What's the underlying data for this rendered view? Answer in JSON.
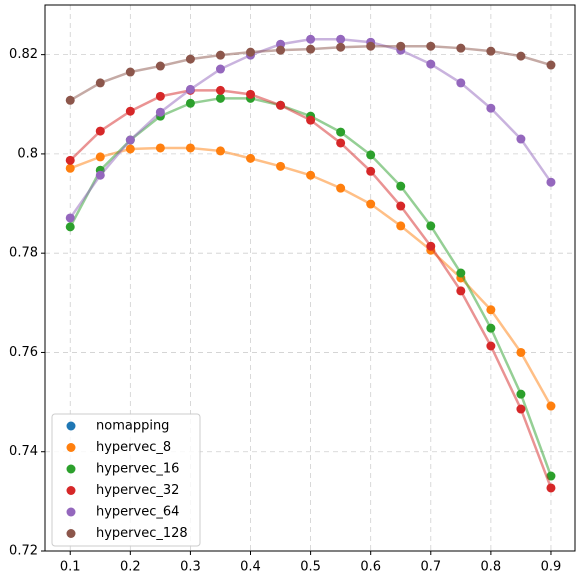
{
  "chart_data": {
    "type": "line",
    "x": [
      0.1,
      0.15,
      0.2,
      0.25,
      0.3,
      0.35,
      0.4,
      0.45,
      0.5,
      0.55,
      0.6,
      0.65,
      0.7,
      0.75,
      0.8,
      0.85,
      0.9
    ],
    "series": [
      {
        "name": "nomapping",
        "color": "#1f77b4",
        "values": [
          null,
          null,
          null,
          null,
          null,
          null,
          null,
          null,
          null,
          null,
          null,
          null,
          null,
          null,
          null,
          null,
          null
        ]
      },
      {
        "name": "hypervec_8",
        "color": "#ff7f0e",
        "values": [
          0.7971,
          0.7994,
          0.801,
          0.8012,
          0.8012,
          0.8006,
          0.7991,
          0.7975,
          0.7957,
          0.7931,
          0.7899,
          0.7855,
          0.7806,
          0.775,
          0.7686,
          0.76,
          0.7492
        ]
      },
      {
        "name": "hypervec_16",
        "color": "#2ca02c",
        "values": [
          0.7853,
          0.7967,
          0.8028,
          0.8076,
          0.8102,
          0.8112,
          0.8112,
          0.8098,
          0.8076,
          0.8044,
          0.7998,
          0.7935,
          0.7855,
          0.776,
          0.7649,
          0.7516,
          0.7351
        ]
      },
      {
        "name": "hypervec_32",
        "color": "#d62728",
        "values": [
          0.7987,
          0.8046,
          0.8086,
          0.8116,
          0.8128,
          0.8128,
          0.812,
          0.8098,
          0.8068,
          0.8022,
          0.7965,
          0.7895,
          0.7814,
          0.7724,
          0.7613,
          0.7486,
          0.7327
        ]
      },
      {
        "name": "hypervec_64",
        "color": "#9467bd",
        "values": [
          0.7871,
          0.7957,
          0.8028,
          0.8084,
          0.813,
          0.8171,
          0.8199,
          0.8221,
          0.8231,
          0.8231,
          0.8225,
          0.8209,
          0.8181,
          0.8143,
          0.8092,
          0.803,
          0.7943
        ]
      },
      {
        "name": "hypervec_128",
        "color": "#8c564b",
        "values": [
          0.8108,
          0.8143,
          0.8165,
          0.8177,
          0.8191,
          0.8199,
          0.8205,
          0.8209,
          0.8211,
          0.8215,
          0.8217,
          0.8217,
          0.8217,
          0.8213,
          0.8207,
          0.8197,
          0.8179
        ]
      }
    ],
    "xlim": [
      0.058,
      0.94
    ],
    "ylim": [
      0.72,
      0.83
    ],
    "xticks": [
      0.1,
      0.2,
      0.3,
      0.4,
      0.5,
      0.6,
      0.7,
      0.8,
      0.9
    ],
    "yticks": [
      0.72,
      0.74,
      0.76,
      0.78,
      0.8,
      0.82
    ],
    "grid": true,
    "legend": "lower left"
  }
}
